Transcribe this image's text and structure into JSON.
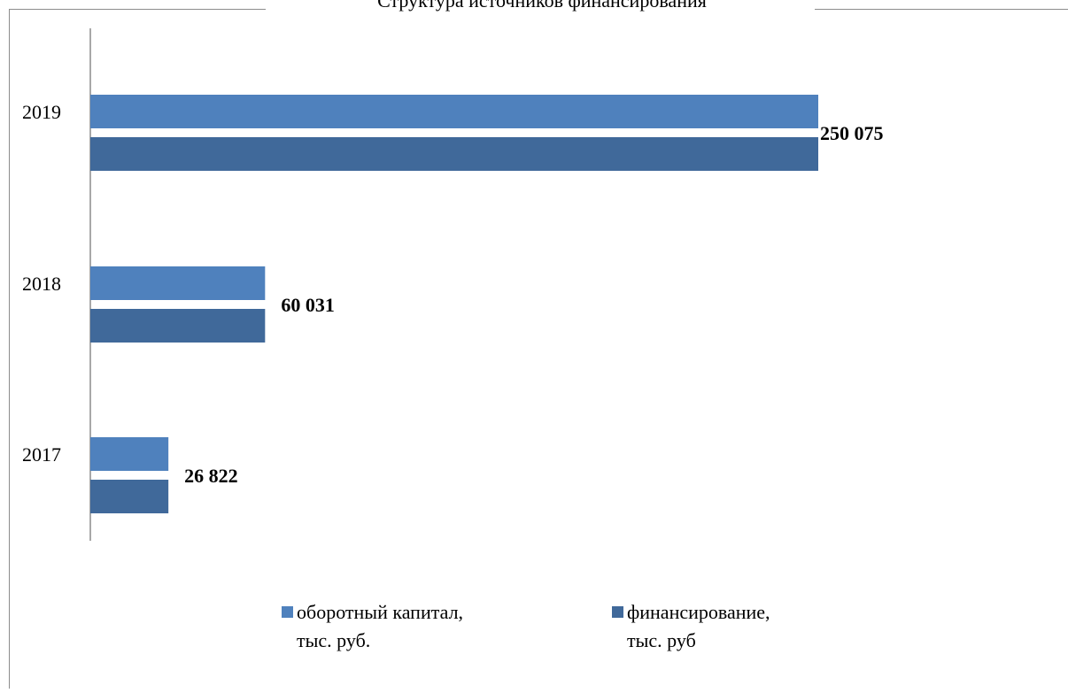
{
  "chart_data": {
    "type": "bar",
    "orientation": "horizontal",
    "title": "Структура источников финансирования",
    "categories": [
      "2019",
      "2018",
      "2017"
    ],
    "series": [
      {
        "name": "оборотный капитал, тыс. руб.",
        "legend_lines": [
          "оборотный капитал,",
          "тыс. руб."
        ],
        "values": [
          250075,
          60031,
          26822
        ],
        "color": "#4f81bd"
      },
      {
        "name": "финансирование, тыс. руб",
        "legend_lines": [
          "финансирование,",
          "тыс. руб"
        ],
        "values": [
          250075,
          60031,
          26822
        ],
        "color": "#40699a"
      }
    ],
    "data_labels": [
      "250 075",
      "60 031",
      "26 822"
    ],
    "legend_position": "bottom",
    "grid": false
  }
}
